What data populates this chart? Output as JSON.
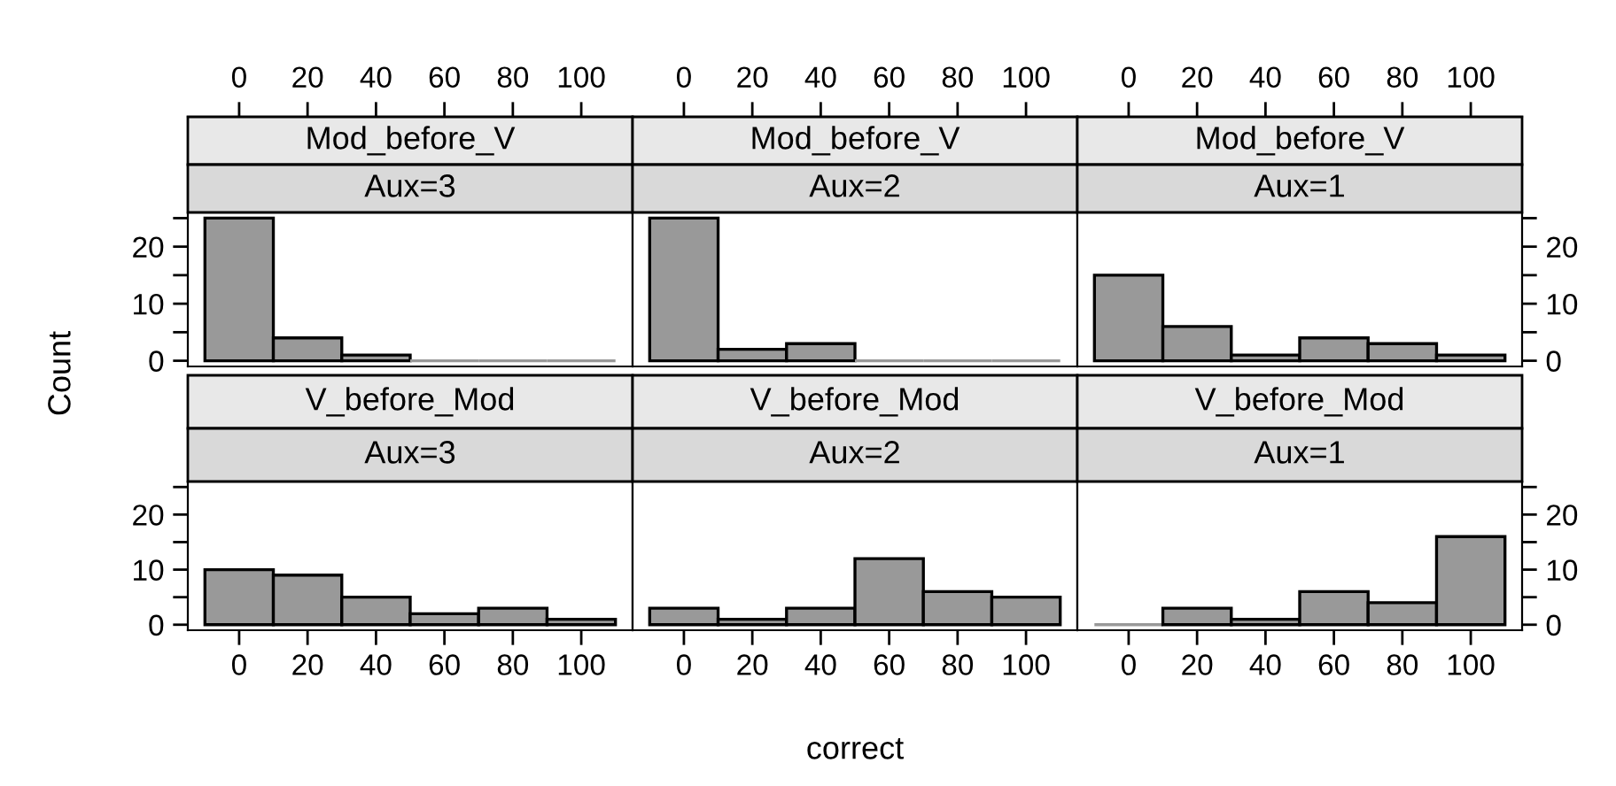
{
  "chart_data": [
    {
      "type": "histogram",
      "title": "Mod_before_V",
      "subtitle": "Aux=3",
      "ylabel": "Count",
      "bins": [
        -10,
        10,
        30,
        50,
        70,
        90,
        110
      ],
      "values": [
        25,
        4,
        1,
        0,
        0,
        0
      ],
      "color": "#999999",
      "xlim": [
        -15,
        115
      ],
      "xticks": [
        0,
        20,
        40,
        60,
        80,
        100
      ],
      "ylim": [
        -1,
        26
      ],
      "yticks": [
        0,
        {
          "value": 5,
          "label": null
        },
        10,
        {
          "value": 15,
          "label": null
        },
        20,
        {
          "value": 25,
          "label": null
        }
      ]
    },
    {
      "type": "histogram",
      "title": "Mod_before_V",
      "subtitle": "Aux=2",
      "bins": [
        -10,
        10,
        30,
        50,
        70,
        90,
        110
      ],
      "values": [
        25,
        2,
        3,
        0,
        0,
        0
      ],
      "color": "#999999",
      "xlim": [
        -15,
        115
      ],
      "xticks": [
        0,
        20,
        40,
        60,
        80,
        100
      ],
      "ylim": [
        -1,
        26
      ],
      "tick_labels": "x"
    },
    {
      "type": "histogram",
      "title": "Mod_before_V",
      "subtitle": "Aux=1",
      "bins": [
        -10,
        10,
        30,
        50,
        70,
        90,
        110
      ],
      "values": [
        15,
        6,
        1,
        4,
        3,
        1
      ],
      "color": "#999999",
      "xlim": [
        -15,
        115
      ],
      "xticks": [
        0,
        20,
        40,
        60,
        80,
        100
      ],
      "ylim": [
        -1,
        26
      ],
      "yticks": [
        0,
        {
          "value": 5,
          "label": null
        },
        10,
        {
          "value": 15,
          "label": null
        },
        20,
        {
          "value": 25,
          "label": null
        }
      ]
    },
    {
      "type": "histogram",
      "title": "V_before_Mod",
      "subtitle": "Aux=3",
      "bins": [
        -10,
        10,
        30,
        50,
        70,
        90,
        110
      ],
      "values": [
        10,
        9,
        5,
        2,
        3,
        1
      ],
      "color": "#999999",
      "xlim": [
        -15,
        115
      ],
      "xticks": [
        0,
        20,
        40,
        60,
        80,
        100
      ],
      "ylim": [
        -1,
        26
      ],
      "yticks": [
        0,
        {
          "value": 5,
          "label": null
        },
        10,
        {
          "value": 15,
          "label": null
        },
        20,
        {
          "value": 25,
          "label": null
        }
      ]
    },
    {
      "type": "histogram",
      "title": "V_before_Mod",
      "subtitle": "Aux=2",
      "xlabel": "correct",
      "bins": [
        -10,
        10,
        30,
        50,
        70,
        90,
        110
      ],
      "values": [
        3,
        1,
        3,
        12,
        6,
        5
      ],
      "color": "#999999",
      "xlim": [
        -15,
        115
      ],
      "xticks": [
        0,
        20,
        40,
        60,
        80,
        100
      ],
      "ylim": [
        -1,
        26
      ],
      "tick_labels": "x"
    },
    {
      "type": "histogram",
      "title": "V_before_Mod",
      "subtitle": "Aux=1",
      "bins": [
        -10,
        10,
        30,
        50,
        70,
        90,
        110
      ],
      "values": [
        0,
        3,
        1,
        6,
        4,
        16
      ],
      "color": "#999999",
      "xlim": [
        -15,
        115
      ],
      "xticks": [
        0,
        20,
        40,
        60,
        80,
        100
      ],
      "ylim": [
        -1,
        26
      ],
      "yticks": [
        0,
        {
          "value": 5,
          "label": null
        },
        10,
        {
          "value": 15,
          "label": null
        },
        20,
        {
          "value": 25,
          "label": null
        }
      ]
    }
  ]
}
